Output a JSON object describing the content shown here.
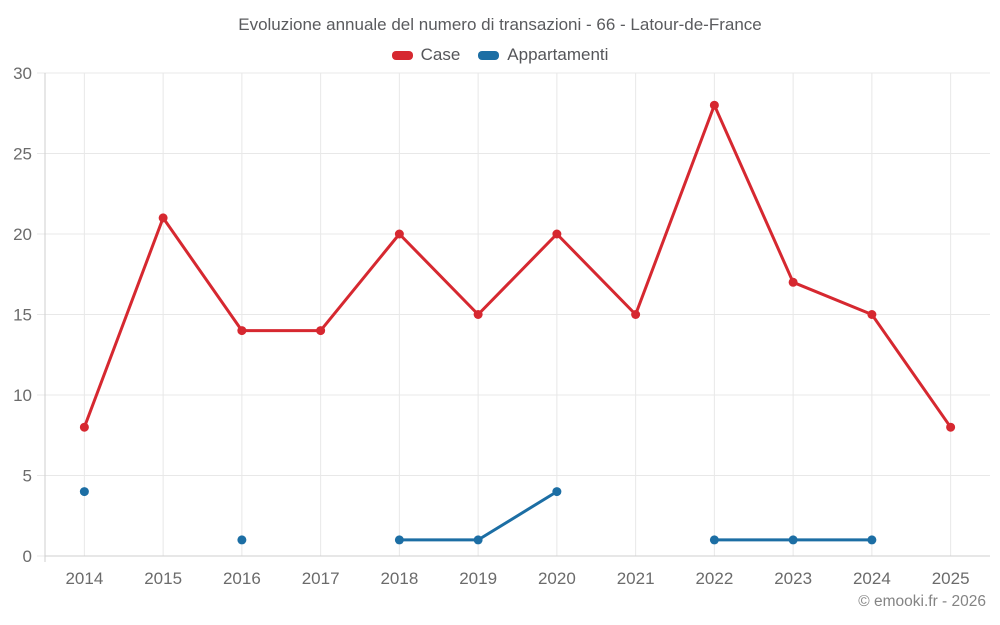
{
  "title": "Evoluzione annuale del numero di transazioni - 66 - Latour-de-France",
  "copyright": "© emooki.fr - 2026",
  "colors": {
    "case_series": "#d62830",
    "appartamenti_series": "#1c6ea4",
    "gridline": "#e8e8e8",
    "axis_line": "#cfcfcf",
    "tick_label": "#6b6b6b",
    "title_text": "#5a5b5e",
    "copyright_text": "#848484"
  },
  "chart_data": {
    "type": "line",
    "title": "Evoluzione annuale del numero di transazioni - 66 - Latour-de-France",
    "categories": [
      "2014",
      "2015",
      "2016",
      "2017",
      "2018",
      "2019",
      "2020",
      "2021",
      "2022",
      "2023",
      "2024",
      "2025"
    ],
    "series": [
      {
        "name": "Case",
        "color": "#d62830",
        "values": [
          8,
          21,
          14,
          14,
          20,
          15,
          20,
          15,
          28,
          17,
          15,
          8
        ]
      },
      {
        "name": "Appartamenti",
        "color": "#1c6ea4",
        "values": [
          4,
          null,
          1,
          null,
          1,
          1,
          4,
          null,
          1,
          1,
          1,
          null
        ]
      }
    ],
    "xlabel": "",
    "ylabel": "",
    "ylim": [
      0,
      30
    ],
    "yticks": [
      0,
      5,
      10,
      15,
      20,
      25,
      30
    ],
    "grid": true,
    "legend_position": "top"
  }
}
